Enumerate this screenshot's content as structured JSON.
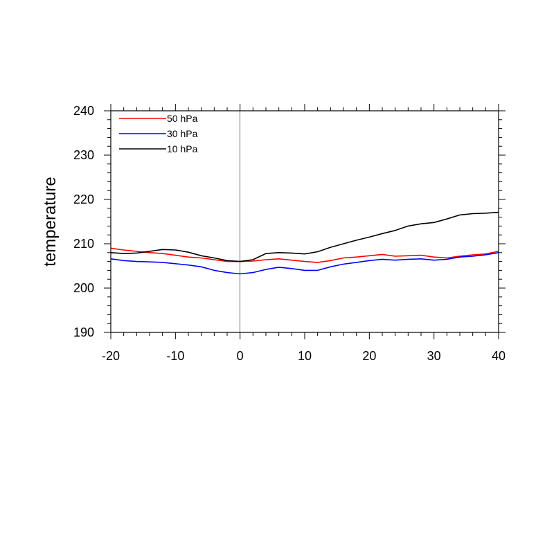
{
  "chart_data": {
    "type": "line",
    "title": "",
    "xlabel": "",
    "ylabel": "temperature",
    "xlim": [
      -20,
      40
    ],
    "ylim": [
      190,
      240
    ],
    "xticks": [
      -20,
      -10,
      0,
      10,
      20,
      30,
      40
    ],
    "yticks": [
      190,
      200,
      210,
      220,
      230,
      240
    ],
    "x_minor_step": 2,
    "y_minor_step": 2,
    "reference_line_x": 0,
    "grid": false,
    "legend_position": "top-left",
    "series": [
      {
        "name": "50 hPa",
        "color": "#ff0000",
        "x": [
          -20,
          -18,
          -16,
          -14,
          -12,
          -10,
          -8,
          -6,
          -4,
          -2,
          0,
          2,
          4,
          6,
          8,
          10,
          12,
          14,
          16,
          18,
          20,
          22,
          24,
          26,
          28,
          30,
          32,
          34,
          36,
          38,
          40
        ],
        "y": [
          209.0,
          208.6,
          208.3,
          208.0,
          207.8,
          207.4,
          207.0,
          206.8,
          206.4,
          206.0,
          206.0,
          206.1,
          206.4,
          206.6,
          206.3,
          206.0,
          205.8,
          206.2,
          206.8,
          207.0,
          207.3,
          207.6,
          207.2,
          207.3,
          207.4,
          207.0,
          206.8,
          207.2,
          207.5,
          207.7,
          208.3
        ]
      },
      {
        "name": "30 hPa",
        "color": "#0000ff",
        "x": [
          -20,
          -18,
          -16,
          -14,
          -12,
          -10,
          -8,
          -6,
          -4,
          -2,
          0,
          2,
          4,
          6,
          8,
          10,
          12,
          14,
          16,
          18,
          20,
          22,
          24,
          26,
          28,
          30,
          32,
          34,
          36,
          38,
          40
        ],
        "y": [
          206.6,
          206.2,
          206.0,
          205.9,
          205.8,
          205.5,
          205.2,
          204.8,
          204.0,
          203.5,
          203.2,
          203.5,
          204.2,
          204.7,
          204.4,
          204.0,
          204.0,
          204.8,
          205.4,
          205.8,
          206.2,
          206.5,
          206.3,
          206.5,
          206.6,
          206.3,
          206.5,
          207.0,
          207.2,
          207.5,
          208.0
        ]
      },
      {
        "name": "10 hPa",
        "color": "#000000",
        "x": [
          -20,
          -18,
          -16,
          -14,
          -12,
          -10,
          -8,
          -6,
          -4,
          -2,
          0,
          2,
          4,
          6,
          8,
          10,
          12,
          14,
          16,
          18,
          20,
          22,
          24,
          26,
          28,
          30,
          32,
          34,
          36,
          38,
          40
        ],
        "y": [
          208.0,
          207.8,
          207.9,
          208.3,
          208.7,
          208.6,
          208.1,
          207.3,
          206.8,
          206.2,
          206.0,
          206.4,
          207.8,
          208.0,
          207.9,
          207.7,
          208.2,
          209.2,
          210.0,
          210.8,
          211.5,
          212.3,
          213.0,
          214.0,
          214.5,
          214.8,
          215.6,
          216.5,
          216.8,
          216.9,
          217.1
        ]
      }
    ]
  }
}
